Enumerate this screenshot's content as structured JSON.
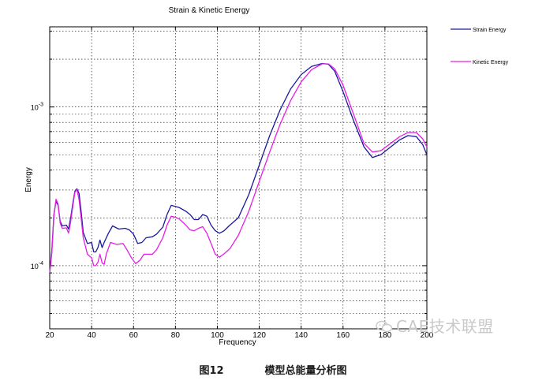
{
  "chart_data": {
    "type": "line",
    "title": "Strain & Kinetic Energy",
    "xlabel": "Frequency",
    "ylabel": "Energy",
    "xlim": [
      20,
      200
    ],
    "ylim": [
      4e-05,
      0.0032
    ],
    "yscale": "log",
    "grid": true,
    "legend_position": "right-outside",
    "x_ticks": [
      "20",
      "40",
      "60",
      "80",
      "100",
      "120",
      "140",
      "160",
      "180",
      "200"
    ],
    "y_ticks": [
      {
        "label_base": "10",
        "label_exp": "-4",
        "value": 0.0001
      },
      {
        "label_base": "10",
        "label_exp": "-3",
        "value": 0.001
      }
    ],
    "series": [
      {
        "name": "Strain Energy",
        "color": "#1a1a9c",
        "points": [
          [
            20,
            9e-05
          ],
          [
            21,
            0.000125
          ],
          [
            22,
            0.00021
          ],
          [
            23,
            0.000255
          ],
          [
            24,
            0.00024
          ],
          [
            25,
            0.00019
          ],
          [
            26,
            0.000178
          ],
          [
            28,
            0.00018
          ],
          [
            29,
            0.00017
          ],
          [
            30,
            0.0002
          ],
          [
            31,
            0.000245
          ],
          [
            32,
            0.000295
          ],
          [
            33,
            0.000305
          ],
          [
            34,
            0.000285
          ],
          [
            35,
            0.00022
          ],
          [
            36,
            0.000162
          ],
          [
            38,
            0.000138
          ],
          [
            40,
            0.00014
          ],
          [
            41,
            0.000122
          ],
          [
            42,
            0.000122
          ],
          [
            43,
            0.00013
          ],
          [
            44,
            0.000145
          ],
          [
            45,
            0.00013
          ],
          [
            46,
            0.00014
          ],
          [
            48,
            0.00016
          ],
          [
            50,
            0.000178
          ],
          [
            53,
            0.00017
          ],
          [
            56,
            0.000172
          ],
          [
            58,
            0.000168
          ],
          [
            60,
            0.000158
          ],
          [
            62,
            0.000138
          ],
          [
            64,
            0.00014
          ],
          [
            66,
            0.00015
          ],
          [
            69,
            0.000152
          ],
          [
            71,
            0.000158
          ],
          [
            74,
            0.000175
          ],
          [
            76,
            0.00021
          ],
          [
            78,
            0.00024
          ],
          [
            80,
            0.000236
          ],
          [
            82,
            0.000232
          ],
          [
            85,
            0.00022
          ],
          [
            87,
            0.00021
          ],
          [
            89,
            0.000195
          ],
          [
            91,
            0.000195
          ],
          [
            93,
            0.00021
          ],
          [
            95,
            0.000205
          ],
          [
            97,
            0.00018
          ],
          [
            99,
            0.000166
          ],
          [
            101,
            0.00016
          ],
          [
            103,
            0.000165
          ],
          [
            106,
            0.00018
          ],
          [
            110,
            0.0002
          ],
          [
            115,
            0.00028
          ],
          [
            120,
            0.00043
          ],
          [
            125,
            0.00066
          ],
          [
            130,
            0.00096
          ],
          [
            135,
            0.0013
          ],
          [
            140,
            0.0016
          ],
          [
            145,
            0.0018
          ],
          [
            150,
            0.00188
          ],
          [
            153,
            0.00186
          ],
          [
            156,
            0.00168
          ],
          [
            160,
            0.00125
          ],
          [
            165,
            0.00082
          ],
          [
            170,
            0.00056
          ],
          [
            174,
            0.00048
          ],
          [
            178,
            0.0005
          ],
          [
            182,
            0.00055
          ],
          [
            187,
            0.00062
          ],
          [
            191,
            0.00066
          ],
          [
            195,
            0.00065
          ],
          [
            198,
            0.00058
          ],
          [
            200,
            0.0005
          ]
        ]
      },
      {
        "name": "Kinetic Energy",
        "color": "#e61ee6",
        "points": [
          [
            20,
            9e-05
          ],
          [
            21,
            0.00012
          ],
          [
            22,
            0.000205
          ],
          [
            23,
            0.000262
          ],
          [
            24,
            0.000245
          ],
          [
            25,
            0.000185
          ],
          [
            26,
            0.000172
          ],
          [
            28,
            0.000173
          ],
          [
            29,
            0.00016
          ],
          [
            30,
            0.00019
          ],
          [
            31,
            0.000235
          ],
          [
            32,
            0.00029
          ],
          [
            33,
            0.000302
          ],
          [
            34,
            0.00026
          ],
          [
            35,
            0.0002
          ],
          [
            36,
            0.00015
          ],
          [
            38,
            0.000118
          ],
          [
            40,
            0.000112
          ],
          [
            41,
            0.0001
          ],
          [
            42,
            0.0001
          ],
          [
            43,
            0.000105
          ],
          [
            44,
            0.000118
          ],
          [
            45,
            0.000104
          ],
          [
            46,
            0.000102
          ],
          [
            47,
            0.000118
          ],
          [
            49,
            0.00014
          ],
          [
            52,
            0.000136
          ],
          [
            55,
            0.000138
          ],
          [
            57,
            0.000125
          ],
          [
            59,
            0.000112
          ],
          [
            61,
            0.000103
          ],
          [
            63,
            0.000108
          ],
          [
            65,
            0.000118
          ],
          [
            69,
            0.000118
          ],
          [
            71,
            0.000126
          ],
          [
            74,
            0.00015
          ],
          [
            76,
            0.00018
          ],
          [
            78,
            0.000205
          ],
          [
            80,
            0.000202
          ],
          [
            82,
            0.000196
          ],
          [
            85,
            0.00018
          ],
          [
            87,
            0.000168
          ],
          [
            89,
            0.000166
          ],
          [
            91,
            0.000172
          ],
          [
            93,
            0.000176
          ],
          [
            95,
            0.00016
          ],
          [
            97,
            0.000138
          ],
          [
            99,
            0.000118
          ],
          [
            101,
            0.000113
          ],
          [
            103,
            0.000118
          ],
          [
            106,
            0.000128
          ],
          [
            110,
            0.000155
          ],
          [
            115,
            0.00022
          ],
          [
            120,
            0.00034
          ],
          [
            125,
            0.00052
          ],
          [
            130,
            0.00078
          ],
          [
            135,
            0.0011
          ],
          [
            140,
            0.00144
          ],
          [
            145,
            0.00172
          ],
          [
            150,
            0.00187
          ],
          [
            153,
            0.00187
          ],
          [
            156,
            0.00174
          ],
          [
            160,
            0.00137
          ],
          [
            165,
            0.0009
          ],
          [
            170,
            0.00059
          ],
          [
            174,
            0.00052
          ],
          [
            178,
            0.00053
          ],
          [
            182,
            0.00058
          ],
          [
            187,
            0.00065
          ],
          [
            191,
            0.00069
          ],
          [
            195,
            0.00069
          ],
          [
            198,
            0.00063
          ],
          [
            200,
            0.00056
          ]
        ]
      }
    ]
  },
  "caption": {
    "figure_number": "图12",
    "figure_title": "模型总能量分析图"
  },
  "watermark": {
    "text": "CAE技术联盟"
  }
}
